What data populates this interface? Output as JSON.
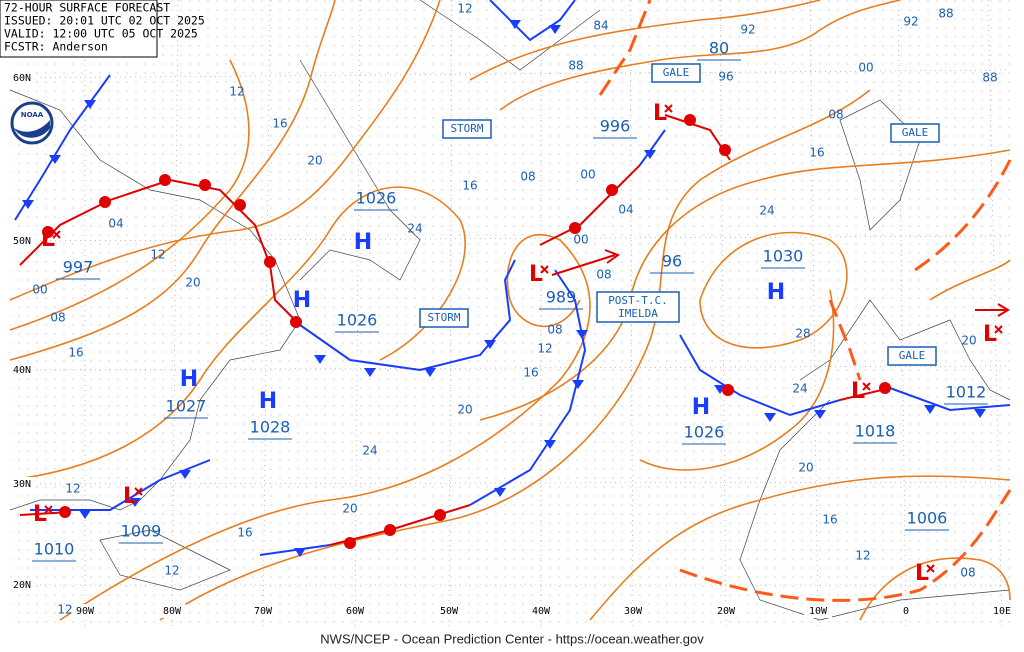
{
  "header": {
    "title": "72-HOUR SURFACE FORECAST",
    "issued": "ISSUED: 20:01 UTC 02 OCT 2025",
    "valid": "VALID:  12:00 UTC 05 OCT 2025",
    "forecaster": "FCSTR:  Anderson"
  },
  "logo": "NOAA",
  "latitude_labels": [
    "60N",
    "50N",
    "40N",
    "30N",
    "20N"
  ],
  "longitude_labels": [
    "90W",
    "80W",
    "70W",
    "60W",
    "50W",
    "40W",
    "30W",
    "20W",
    "10W",
    "0",
    "10E"
  ],
  "centers": [
    {
      "symbol": "H",
      "pressure": "1026"
    },
    {
      "symbol": "H",
      "pressure": "1026"
    },
    {
      "symbol": "H",
      "pressure": "1027"
    },
    {
      "symbol": "H",
      "pressure": "1028"
    },
    {
      "symbol": "H",
      "pressure": "1030"
    },
    {
      "symbol": "H",
      "pressure": "1026"
    },
    {
      "symbol": "L",
      "pressure": "997"
    },
    {
      "symbol": "L",
      "pressure": "989"
    },
    {
      "symbol": "L",
      "pressure": "996"
    },
    {
      "symbol": "L",
      "pressure": "1018"
    },
    {
      "symbol": "L",
      "pressure": "1012"
    },
    {
      "symbol": "L",
      "pressure": "1009"
    },
    {
      "symbol": "L",
      "pressure": "1010"
    },
    {
      "symbol": "L",
      "pressure": "1006"
    },
    {
      "pressure": "96"
    },
    {
      "pressure": "80"
    }
  ],
  "warnings": [
    "STORM",
    "GALE",
    "GALE",
    "STORM",
    "GALE"
  ],
  "storm_name": [
    "POST-T.C.",
    "IMELDA"
  ],
  "isobar_labels": [
    "12",
    "84",
    "92",
    "92",
    "88",
    "88",
    "96",
    "00",
    "88",
    "12",
    "16",
    "08",
    "16",
    "20",
    "08",
    "00",
    "16",
    "04",
    "24",
    "04",
    "24",
    "12",
    "00",
    "08",
    "00",
    "20",
    "08",
    "28",
    "08",
    "16",
    "12",
    "16",
    "20",
    "24",
    "20",
    "24",
    "20",
    "12",
    "20",
    "16",
    "16",
    "12",
    "12",
    "08",
    "12"
  ],
  "footer": "NWS/NCEP - Ocean Prediction Center - https://ocean.weather.gov"
}
